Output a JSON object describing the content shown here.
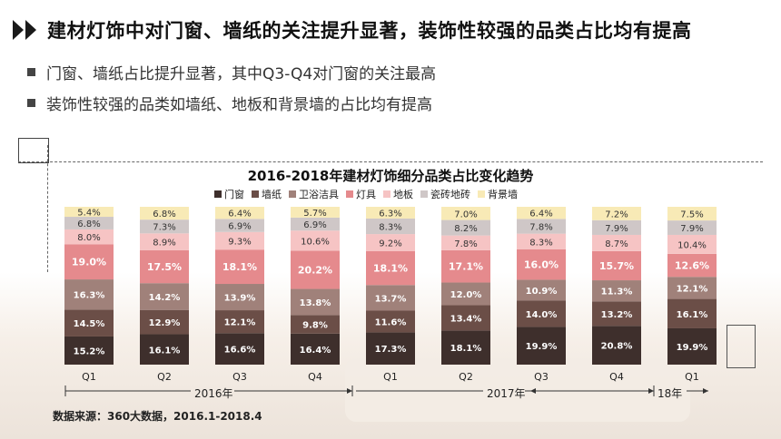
{
  "header": {
    "title": "建材灯饰中对门窗、墙纸的关注提升显著，装饰性较强的品类占比均有提高"
  },
  "bullets": [
    "门窗、墙纸占比提升显著，其中Q3-Q4对门窗的关注最高",
    "装饰性较强的品类如墙纸、地板和背景墙的占比均有提高"
  ],
  "source": "数据来源：360大数据，2016.1-2018.4",
  "years": [
    "2016年",
    "2017年",
    "18年"
  ],
  "chart_data": {
    "type": "bar",
    "stacked": true,
    "title": "2016-2018年建材灯饰细分品类占比变化趋势",
    "categories": [
      "Q1",
      "Q2",
      "Q3",
      "Q4",
      "Q1",
      "Q2",
      "Q3",
      "Q4",
      "Q1"
    ],
    "unit": "%",
    "legend_position": "top",
    "series": [
      {
        "name": "门窗",
        "color": "#3e2f2c",
        "values": [
          15.2,
          16.1,
          16.6,
          16.4,
          17.3,
          18.1,
          19.9,
          20.8,
          19.9
        ]
      },
      {
        "name": "墙纸",
        "color": "#6b4e47",
        "values": [
          14.5,
          12.9,
          12.1,
          9.8,
          11.6,
          13.4,
          14.0,
          13.2,
          16.1
        ]
      },
      {
        "name": "卫浴洁具",
        "color": "#a0817a",
        "values": [
          16.3,
          14.2,
          13.9,
          13.8,
          13.7,
          12.0,
          10.9,
          11.3,
          12.1
        ]
      },
      {
        "name": "灯具",
        "color": "#e58a8d",
        "values": [
          19.0,
          17.5,
          18.1,
          20.2,
          18.1,
          17.1,
          16.0,
          15.7,
          12.6
        ]
      },
      {
        "name": "地板",
        "color": "#f6c4c4",
        "values": [
          8.0,
          8.9,
          9.3,
          10.6,
          9.2,
          7.8,
          8.3,
          8.7,
          10.4
        ]
      },
      {
        "name": "瓷砖地砖",
        "color": "#cfc7c7",
        "values": [
          6.8,
          7.3,
          6.9,
          6.9,
          8.3,
          8.2,
          7.8,
          7.9,
          7.9
        ]
      },
      {
        "name": "背景墙",
        "color": "#f8eab6",
        "values": [
          5.4,
          6.8,
          6.4,
          5.7,
          6.3,
          7.0,
          6.4,
          7.2,
          7.5
        ]
      }
    ]
  }
}
